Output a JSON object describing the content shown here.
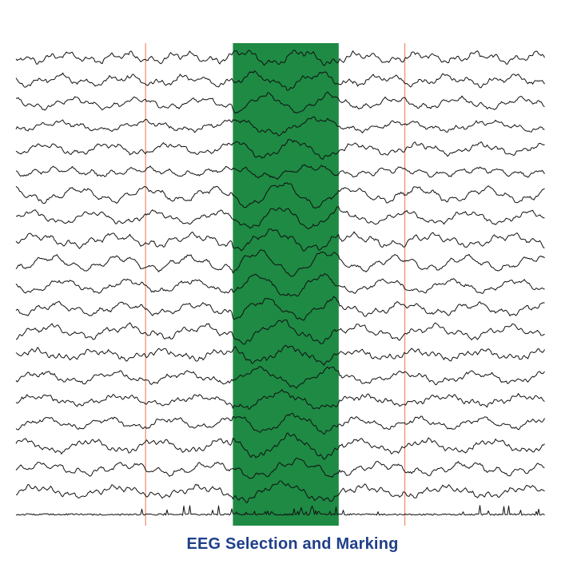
{
  "caption": "EEG Selection and Marking",
  "colors": {
    "background": "#ffffff",
    "trace": "#111111",
    "selection_fill": "#1e8a44",
    "marker_line": "#f08a6a",
    "caption": "#1f3f8a"
  },
  "channel_count": 21,
  "selection": {
    "start": 0.41,
    "end": 0.61
  },
  "markers": [
    0.245,
    0.735
  ]
}
